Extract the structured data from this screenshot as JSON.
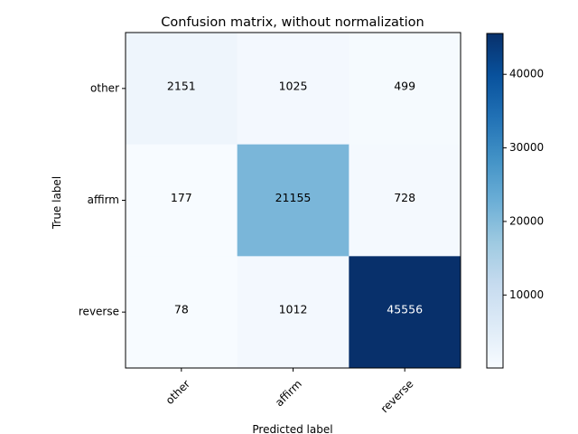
{
  "chart_data": {
    "type": "heatmap",
    "title": "Confusion matrix, without normalization",
    "xlabel": "Predicted label",
    "ylabel": "True label",
    "x_categories": [
      "other",
      "affirm",
      "reverse"
    ],
    "y_categories": [
      "other",
      "affirm",
      "reverse"
    ],
    "values": [
      [
        2151,
        1025,
        499
      ],
      [
        177,
        21155,
        728
      ],
      [
        78,
        1012,
        45556
      ]
    ],
    "colorscale": "Blues",
    "colorbar": {
      "range": [
        78,
        45556
      ],
      "ticks": [
        10000,
        20000,
        30000,
        40000
      ]
    },
    "grid": false
  }
}
